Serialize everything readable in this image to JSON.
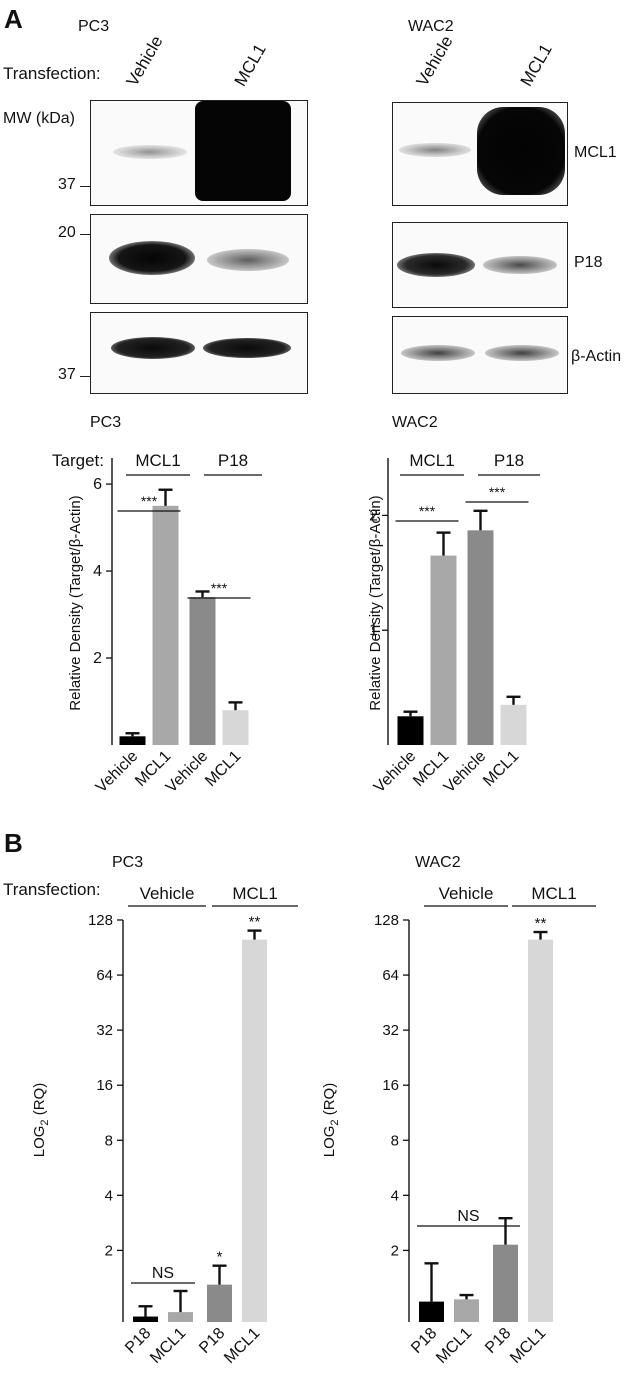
{
  "panel_a": {
    "letter": "A",
    "cell_pc3": "PC3",
    "cell_wac2": "WAC2",
    "transfection_label": "Transfection:",
    "lane_vehicle": "Vehicle",
    "lane_mcl1": "MCL1",
    "mw_label": "MW (kDa)",
    "mw_37": "37",
    "mw_20": "20",
    "blot_mcl1": "MCL1",
    "blot_p18": "P18",
    "blot_actin": "β-Actin"
  },
  "panel_b": {
    "letter": "B",
    "transfection_label": "Transfection:",
    "group_vehicle": "Vehicle",
    "group_mcl1": "MCL1"
  },
  "chart_data": [
    {
      "type": "bar",
      "title": "PC3",
      "group_prefix": "Target:",
      "groups": [
        "MCL1",
        "P18"
      ],
      "categories": [
        "Vehicle",
        "MCL1",
        "Vehicle",
        "MCL1"
      ],
      "values": [
        0.2,
        5.5,
        3.4,
        0.8
      ],
      "errors": [
        0.07,
        0.37,
        0.13,
        0.18
      ],
      "bar_colors": [
        "#000000",
        "#a8a8a8",
        "#8a8a8a",
        "#d7d7d7"
      ],
      "ylabel": "Relative Density (Target/β-Actin)",
      "ylim": [
        0,
        6.6
      ],
      "yticks": [
        "2",
        "4",
        "6"
      ],
      "ytick_values": [
        2,
        4,
        6
      ],
      "significance": [
        {
          "from": 0,
          "to": 1,
          "label": "***"
        },
        {
          "from": 2,
          "to": 3,
          "label": "***"
        }
      ]
    },
    {
      "type": "bar",
      "title": "WAC2",
      "categories": [
        "Vehicle",
        "MCL1",
        "Vehicle",
        "MCL1"
      ],
      "groups": [
        "MCL1",
        "P18"
      ],
      "values": [
        0.25,
        1.65,
        1.87,
        0.35
      ],
      "errors": [
        0.04,
        0.2,
        0.17,
        0.07
      ],
      "bar_colors": [
        "#000000",
        "#a8a8a8",
        "#8a8a8a",
        "#d7d7d7"
      ],
      "ylabel": "Relative Density (Target/β-Actin)",
      "ylim": [
        0,
        2.5
      ],
      "yticks": [
        "1",
        "2"
      ],
      "ytick_values": [
        1,
        2
      ],
      "significance": [
        {
          "from": 0,
          "to": 1,
          "label": "***"
        },
        {
          "from": 2,
          "to": 3,
          "label": "***"
        }
      ]
    },
    {
      "type": "bar",
      "title": "PC3",
      "categories": [
        "P18",
        "MCL1",
        "P18",
        "MCL1"
      ],
      "values": [
        0.87,
        0.92,
        1.3,
        100
      ],
      "errors": [
        0.12,
        0.28,
        0.35,
        12
      ],
      "bar_colors": [
        "#000000",
        "#a8a8a8",
        "#8a8a8a",
        "#d7d7d7"
      ],
      "ylabel": "LOG2 (RQ)",
      "yscale": "log2",
      "ylim_log2": [
        -0.3,
        7
      ],
      "yticks": [
        "2",
        "4",
        "8",
        "16",
        "32",
        "64",
        "128"
      ],
      "ytick_values": [
        2,
        4,
        8,
        16,
        32,
        64,
        128
      ],
      "bar_annotations": [
        "",
        "",
        "*",
        "**"
      ],
      "significance": [
        {
          "from": 0,
          "to": 1,
          "label": "NS"
        }
      ]
    },
    {
      "type": "bar",
      "title": "WAC2",
      "categories": [
        "P18",
        "MCL1",
        "P18",
        "MCL1"
      ],
      "values": [
        1.05,
        1.08,
        2.15,
        100
      ],
      "errors": [
        0.65,
        0.06,
        0.85,
        10
      ],
      "bar_colors": [
        "#000000",
        "#a8a8a8",
        "#8a8a8a",
        "#d7d7d7"
      ],
      "ylabel": "LOG2 (RQ)",
      "yscale": "log2",
      "ylim_log2": [
        -0.3,
        7
      ],
      "yticks": [
        "2",
        "4",
        "8",
        "16",
        "32",
        "64",
        "128"
      ],
      "ytick_values": [
        2,
        4,
        8,
        16,
        32,
        64,
        128
      ],
      "bar_annotations": [
        "",
        "",
        "",
        "**"
      ],
      "significance": [
        {
          "from": 0,
          "to": 2,
          "label": "NS"
        }
      ]
    }
  ]
}
